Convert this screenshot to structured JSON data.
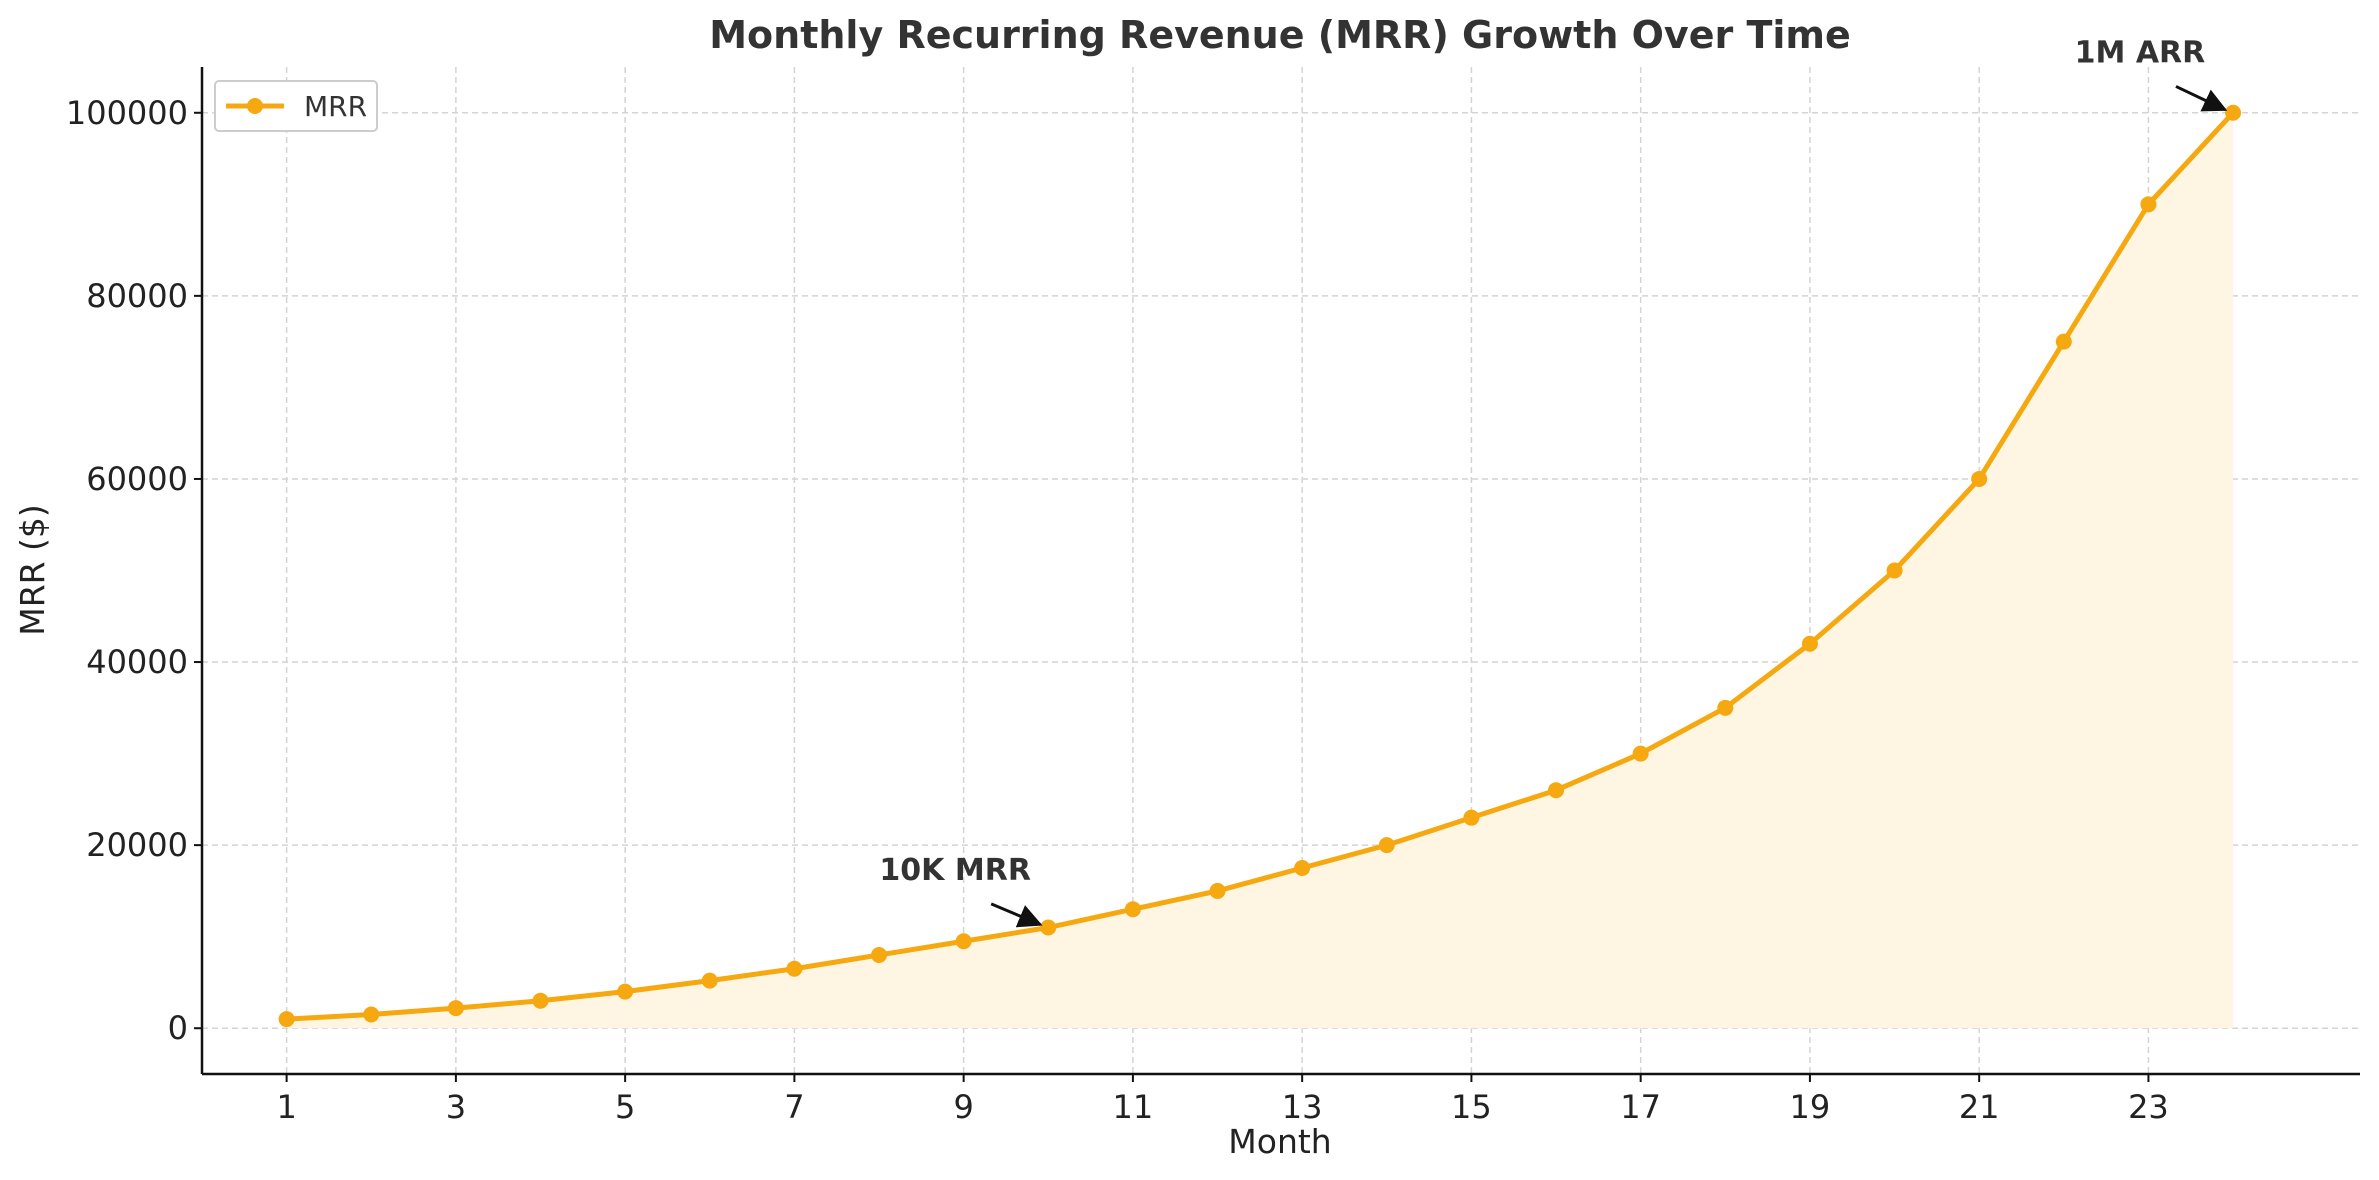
{
  "chart_data": {
    "type": "area",
    "title": "Monthly Recurring Revenue (MRR) Growth Over Time",
    "xlabel": "Month",
    "ylabel": "MRR ($)",
    "xlim": [
      0,
      25.5
    ],
    "ylim": [
      -5000,
      105000
    ],
    "grid": true,
    "legend_position": "top-left",
    "x_ticks": [
      1,
      3,
      5,
      7,
      9,
      11,
      13,
      15,
      17,
      19,
      21,
      23
    ],
    "y_ticks": [
      0,
      20000,
      40000,
      60000,
      80000,
      100000
    ],
    "x_tick_labels": [
      "1",
      "3",
      "5",
      "7",
      "9",
      "11",
      "13",
      "15",
      "17",
      "19",
      "21",
      "23"
    ],
    "y_tick_labels": [
      "0",
      "20000",
      "40000",
      "60000",
      "80000",
      "100000"
    ],
    "series": [
      {
        "name": "MRR",
        "color": "#f5a80f",
        "fill_color": "#fff5e3",
        "x": [
          1,
          2,
          3,
          4,
          5,
          6,
          7,
          8,
          9,
          10,
          11,
          12,
          13,
          14,
          15,
          16,
          17,
          18,
          19,
          20,
          21,
          22,
          23,
          24
        ],
        "values": [
          1000,
          1500,
          2200,
          3000,
          4000,
          5200,
          6500,
          8000,
          9500,
          11000,
          13000,
          15000,
          17500,
          20000,
          23000,
          26000,
          30000,
          35000,
          42000,
          50000,
          60000,
          75000,
          90000,
          100000
        ]
      }
    ],
    "annotations": [
      {
        "text": "10K MRR",
        "point": [
          10,
          11000
        ],
        "text_anchor_data": [
          8.9,
          16200
        ]
      },
      {
        "text": "1M ARR",
        "point": [
          24,
          100000
        ],
        "text_anchor_data": [
          22.9,
          105500
        ]
      }
    ]
  }
}
